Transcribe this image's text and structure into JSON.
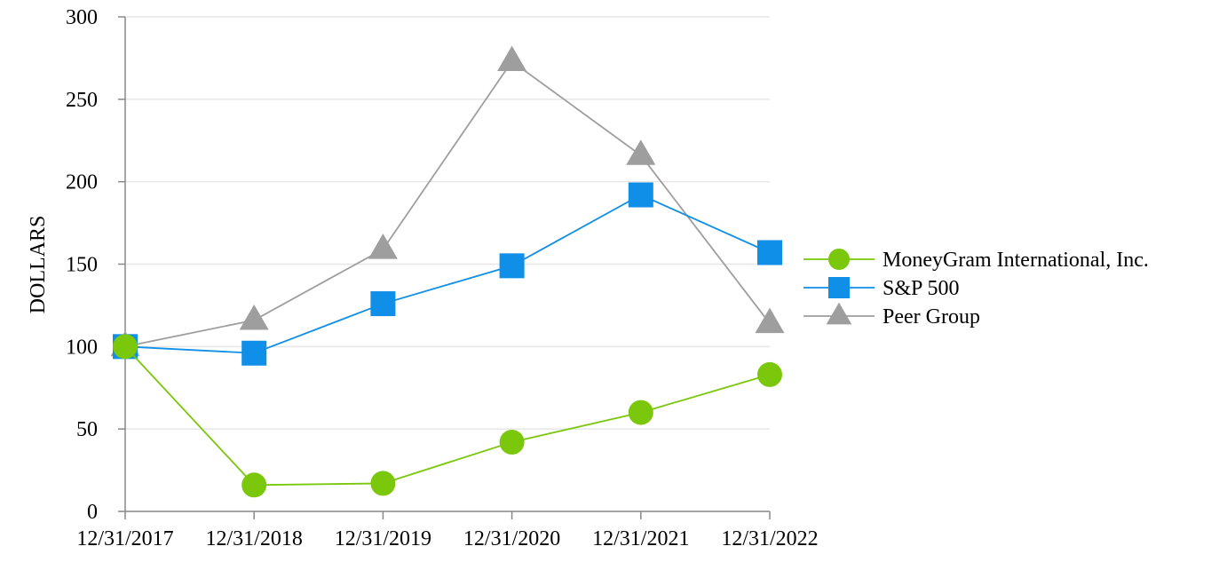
{
  "chart_data": {
    "type": "line",
    "title": "",
    "xlabel": "",
    "ylabel": "DOLLARS",
    "ylim": [
      0,
      300
    ],
    "yticks": [
      0,
      50,
      100,
      150,
      200,
      250,
      300
    ],
    "categories": [
      "12/31/2017",
      "12/31/2018",
      "12/31/2019",
      "12/31/2020",
      "12/31/2021",
      "12/31/2022"
    ],
    "grid": "horizontal",
    "legend_position": "right",
    "series": [
      {
        "name": "MoneyGram International, Inc.",
        "marker": "circle",
        "color": "#7ac70c",
        "values": [
          100,
          16,
          17,
          42,
          60,
          83
        ]
      },
      {
        "name": "S&P 500",
        "marker": "square",
        "color": "#0f8fe8",
        "values": [
          100,
          96,
          126,
          149,
          192,
          157
        ]
      },
      {
        "name": "Peer Group",
        "marker": "triangle",
        "color": "#9e9e9e",
        "values": [
          100,
          116,
          159,
          273,
          216,
          114
        ]
      }
    ]
  }
}
